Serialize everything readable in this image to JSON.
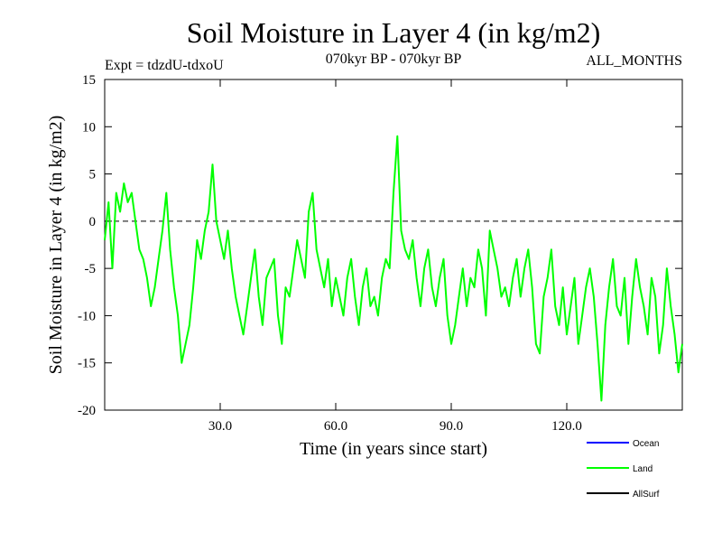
{
  "chart_data": {
    "type": "line",
    "title": "Soil Moisture in Layer 4 (in kg/m2)",
    "subtitle": "070kyr BP - 070kyr BP",
    "experiment_label": "Expt = tdzdU-tdxoU",
    "period_label": "ALL_MONTHS",
    "xlabel": "Time (in years since start)",
    "ylabel": "Soil Moisture in Layer 4 (in kg/m2)",
    "xlim": [
      0,
      150
    ],
    "ylim": [
      -20,
      15
    ],
    "xticks": [
      30,
      60,
      90,
      120
    ],
    "xtick_labels": [
      "30.0",
      "60.0",
      "90.0",
      "120.0"
    ],
    "yticks": [
      15,
      10,
      5,
      0,
      -5,
      -10,
      -15,
      -20
    ],
    "ytick_labels": [
      "15",
      "10",
      "5",
      "0",
      "-5",
      "-10",
      "-15",
      "-20"
    ],
    "zero_line": 0,
    "legend": [
      {
        "name": "Ocean",
        "color": "#0000ff"
      },
      {
        "name": "Land",
        "color": "#00ff00"
      },
      {
        "name": "AllSurf",
        "color": "#000000"
      }
    ],
    "series": [
      {
        "name": "Land",
        "color": "#00ff00",
        "x": [
          0,
          1,
          2,
          3,
          4,
          5,
          6,
          7,
          8,
          9,
          10,
          11,
          12,
          13,
          14,
          15,
          16,
          17,
          18,
          19,
          20,
          21,
          22,
          23,
          24,
          25,
          26,
          27,
          28,
          29,
          30,
          31,
          32,
          33,
          34,
          35,
          36,
          37,
          38,
          39,
          40,
          41,
          42,
          43,
          44,
          45,
          46,
          47,
          48,
          49,
          50,
          51,
          52,
          53,
          54,
          55,
          56,
          57,
          58,
          59,
          60,
          61,
          62,
          63,
          64,
          65,
          66,
          67,
          68,
          69,
          70,
          71,
          72,
          73,
          74,
          75,
          76,
          77,
          78,
          79,
          80,
          81,
          82,
          83,
          84,
          85,
          86,
          87,
          88,
          89,
          90,
          91,
          92,
          93,
          94,
          95,
          96,
          97,
          98,
          99,
          100,
          101,
          102,
          103,
          104,
          105,
          106,
          107,
          108,
          109,
          110,
          111,
          112,
          113,
          114,
          115,
          116,
          117,
          118,
          119,
          120,
          121,
          122,
          123,
          124,
          125,
          126,
          127,
          128,
          129,
          130,
          131,
          132,
          133,
          134,
          135,
          136,
          137,
          138,
          139,
          140,
          141,
          142,
          143,
          144,
          145,
          146,
          147,
          148,
          149,
          150
        ],
        "values": [
          -2,
          2,
          -5,
          3,
          1,
          4,
          2,
          3,
          0,
          -3,
          -4,
          -6,
          -9,
          -7,
          -4,
          -1,
          3,
          -3,
          -7,
          -10,
          -15,
          -13,
          -11,
          -7,
          -2,
          -4,
          -1,
          1,
          6,
          0,
          -2,
          -4,
          -1,
          -5,
          -8,
          -10,
          -12,
          -9,
          -6,
          -3,
          -8,
          -11,
          -6,
          -5,
          -4,
          -10,
          -13,
          -7,
          -8,
          -5,
          -2,
          -4,
          -6,
          1,
          3,
          -3,
          -5,
          -7,
          -4,
          -9,
          -6,
          -8,
          -10,
          -6,
          -4,
          -8,
          -11,
          -7,
          -5,
          -9,
          -8,
          -10,
          -6,
          -4,
          -5,
          3,
          9,
          -1,
          -3,
          -4,
          -2,
          -6,
          -9,
          -5,
          -3,
          -7,
          -9,
          -6,
          -4,
          -10,
          -13,
          -11,
          -8,
          -5,
          -9,
          -6,
          -7,
          -3,
          -5,
          -10,
          -1,
          -3,
          -5,
          -8,
          -7,
          -9,
          -6,
          -4,
          -8,
          -5,
          -3,
          -7,
          -13,
          -14,
          -8,
          -6,
          -3,
          -9,
          -11,
          -7,
          -12,
          -9,
          -6,
          -13,
          -10,
          -7,
          -5,
          -8,
          -13,
          -19,
          -11,
          -7,
          -4,
          -9,
          -10,
          -6,
          -13,
          -8,
          -4,
          -7,
          -9,
          -12,
          -6,
          -8,
          -14,
          -11,
          -5,
          -9,
          -12,
          -16,
          -13
        ]
      }
    ]
  }
}
